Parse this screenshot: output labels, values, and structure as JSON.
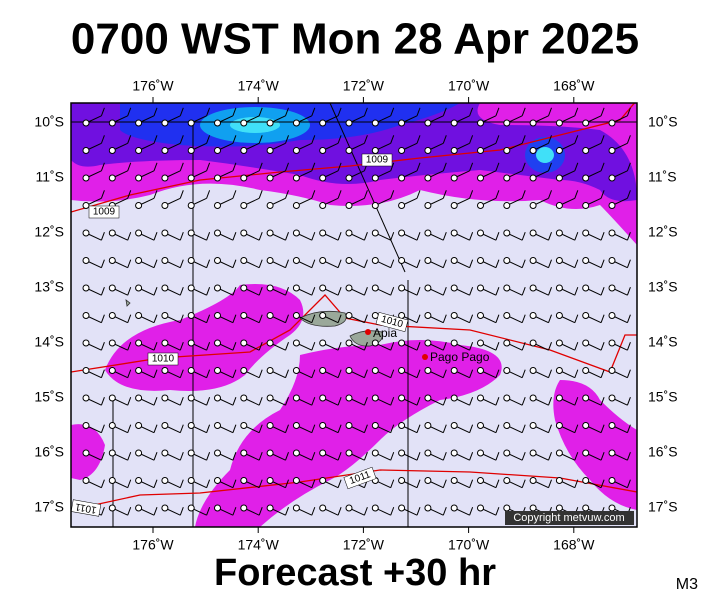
{
  "header": {
    "title": "0700 WST Mon 28 Apr 2025"
  },
  "map": {
    "lon_labels": [
      "176˚W",
      "174˚W",
      "172˚W",
      "170˚W",
      "168˚W"
    ],
    "lat_labels": [
      "10˚S",
      "11˚S",
      "12˚S",
      "13˚S",
      "14˚S",
      "15˚S",
      "16˚S",
      "17˚S"
    ],
    "places": [
      {
        "label": "Apia"
      },
      {
        "label": "Pago Pago"
      }
    ],
    "isobar_labels": [
      "1009",
      "1009",
      "1010",
      "1010",
      "1011",
      "1011"
    ],
    "copyright": "Copyright metvuw.com"
  },
  "footer": {
    "forecast": "Forecast +30 hr",
    "model": "M3"
  }
}
